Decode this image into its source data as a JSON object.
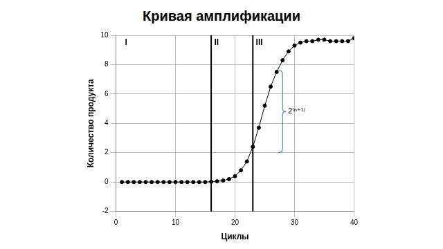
{
  "chart_data": {
    "type": "line",
    "title": "Кривая амплификации",
    "x_label": "Циклы",
    "y_label": "Количество продукта",
    "x": [
      1,
      2,
      3,
      4,
      5,
      6,
      7,
      8,
      9,
      10,
      11,
      12,
      13,
      14,
      15,
      16,
      17,
      18,
      19,
      20,
      21,
      22,
      23,
      24,
      25,
      26,
      27,
      28,
      29,
      30,
      31,
      32,
      33,
      34,
      35,
      36,
      37,
      38,
      39,
      40
    ],
    "values": [
      0,
      0,
      0,
      0,
      0,
      0,
      0,
      0,
      0,
      0,
      0,
      0,
      0,
      0,
      0,
      0.02,
      0.05,
      0.1,
      0.2,
      0.4,
      0.8,
      1.4,
      2.4,
      3.7,
      5.2,
      6.5,
      7.5,
      8.3,
      8.9,
      9.3,
      9.5,
      9.6,
      9.6,
      9.7,
      9.7,
      9.6,
      9.6,
      9.6,
      9.6,
      9.8
    ],
    "color": "#000000",
    "marker": "circle",
    "line_style": "solid",
    "xlim": [
      0,
      40
    ],
    "xticks": [
      0,
      10,
      20,
      30,
      40
    ],
    "ylim": [
      -2,
      10
    ],
    "yticks": [
      -2,
      0,
      2,
      4,
      6,
      8,
      10
    ],
    "grid": true,
    "vlines": [
      16,
      23
    ],
    "annotations": [
      {
        "text": "I",
        "x": 1.5,
        "y": 9.5
      },
      {
        "text": "II",
        "x": 16.5,
        "y": 9.5
      },
      {
        "text": "III",
        "x": 23.5,
        "y": 9.5
      }
    ],
    "bracket": {
      "x": 28,
      "y": [
        2,
        7.6
      ],
      "label": "2⁽ⁿ⁺¹⁾"
    }
  }
}
